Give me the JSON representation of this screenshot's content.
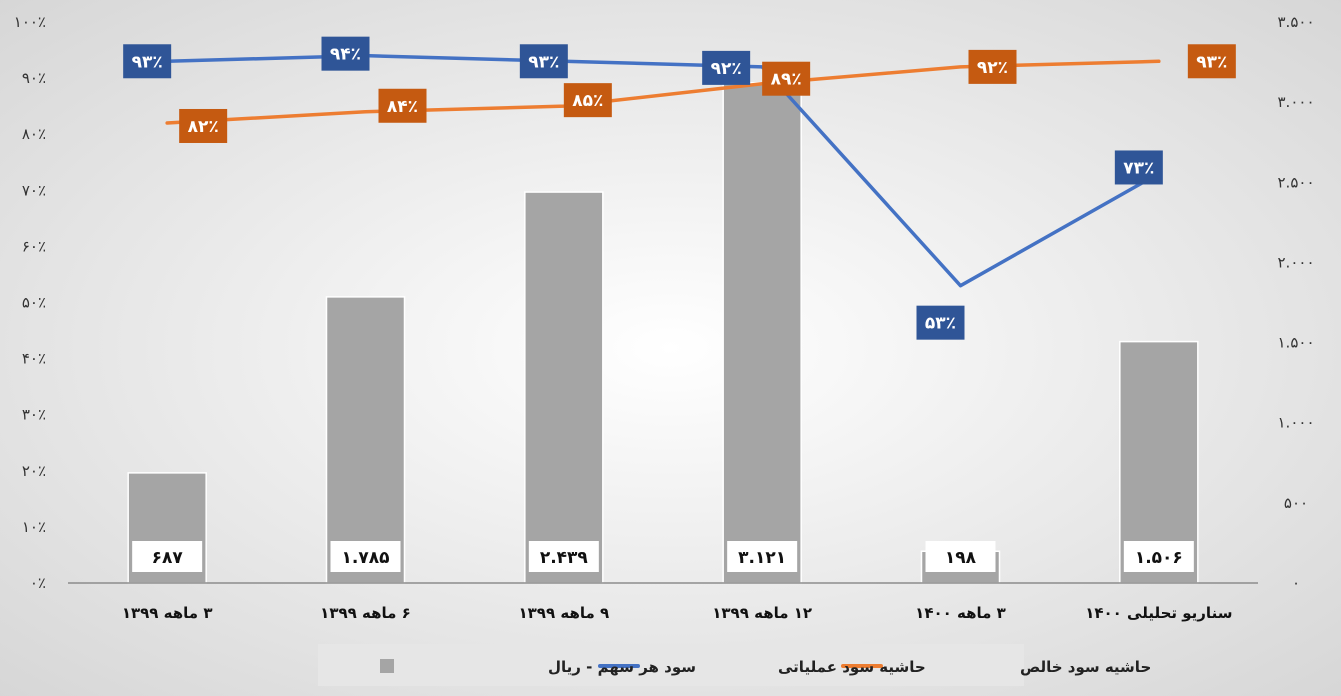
{
  "chart_data": {
    "type": "bar",
    "categories": [
      "۳ ماهه ۱۳۹۹",
      "۶ ماهه ۱۳۹۹",
      "۹ ماهه ۱۳۹۹",
      "۱۲ ماهه ۱۳۹۹",
      "۳ ماهه ۱۴۰۰",
      "سناریو تحلیلی ۱۴۰۰"
    ],
    "series": [
      {
        "name": "سود هر سهم - ریال",
        "type": "bar",
        "axis": "right",
        "values": [
          687,
          1785,
          2439,
          3121,
          198,
          1506
        ],
        "labels": [
          "۶۸۷",
          "۱.۷۸۵",
          "۲.۴۳۹",
          "۳.۱۲۱",
          "۱۹۸",
          "۱.۵۰۶"
        ],
        "color": "#a5a5a5"
      },
      {
        "name": "حاشیه سود عملیاتی",
        "type": "line",
        "axis": "left",
        "values": [
          93,
          94,
          93,
          92,
          53,
          73
        ],
        "labels": [
          "۹۳٪",
          "۹۴٪",
          "۹۳٪",
          "۹۲٪",
          "۵۳٪",
          "۷۳٪"
        ],
        "color": "#4472c4",
        "label_color": "#2f5597"
      },
      {
        "name": "حاشیه سود خالص",
        "type": "line",
        "axis": "left",
        "values": [
          82,
          84,
          85,
          89,
          92,
          93
        ],
        "labels": [
          "۸۲٪",
          "۸۴٪",
          "۸۵٪",
          "۸۹٪",
          "۹۲٪",
          "۹۳٪"
        ],
        "color": "#ed7d31",
        "label_color": "#c55a11"
      }
    ],
    "left_axis": {
      "ylim": [
        0,
        100
      ],
      "ticks": [
        0,
        10,
        20,
        30,
        40,
        50,
        60,
        70,
        80,
        90,
        100
      ],
      "tick_labels": [
        "۰٪",
        "۱۰٪",
        "۲۰٪",
        "۳۰٪",
        "۴۰٪",
        "۵۰٪",
        "۶۰٪",
        "۷۰٪",
        "۸۰٪",
        "۹۰٪",
        "۱۰۰٪"
      ]
    },
    "right_axis": {
      "ylim": [
        0,
        3500
      ],
      "ticks": [
        0,
        500,
        1000,
        1500,
        2000,
        2500,
        3000,
        3500
      ],
      "tick_labels": [
        "۰",
        "۵۰۰",
        "۱.۰۰۰",
        "۱.۵۰۰",
        "۲.۰۰۰",
        "۲.۵۰۰",
        "۳.۰۰۰",
        "۳.۵۰۰"
      ]
    },
    "legend_position": "bottom",
    "grid": false
  }
}
